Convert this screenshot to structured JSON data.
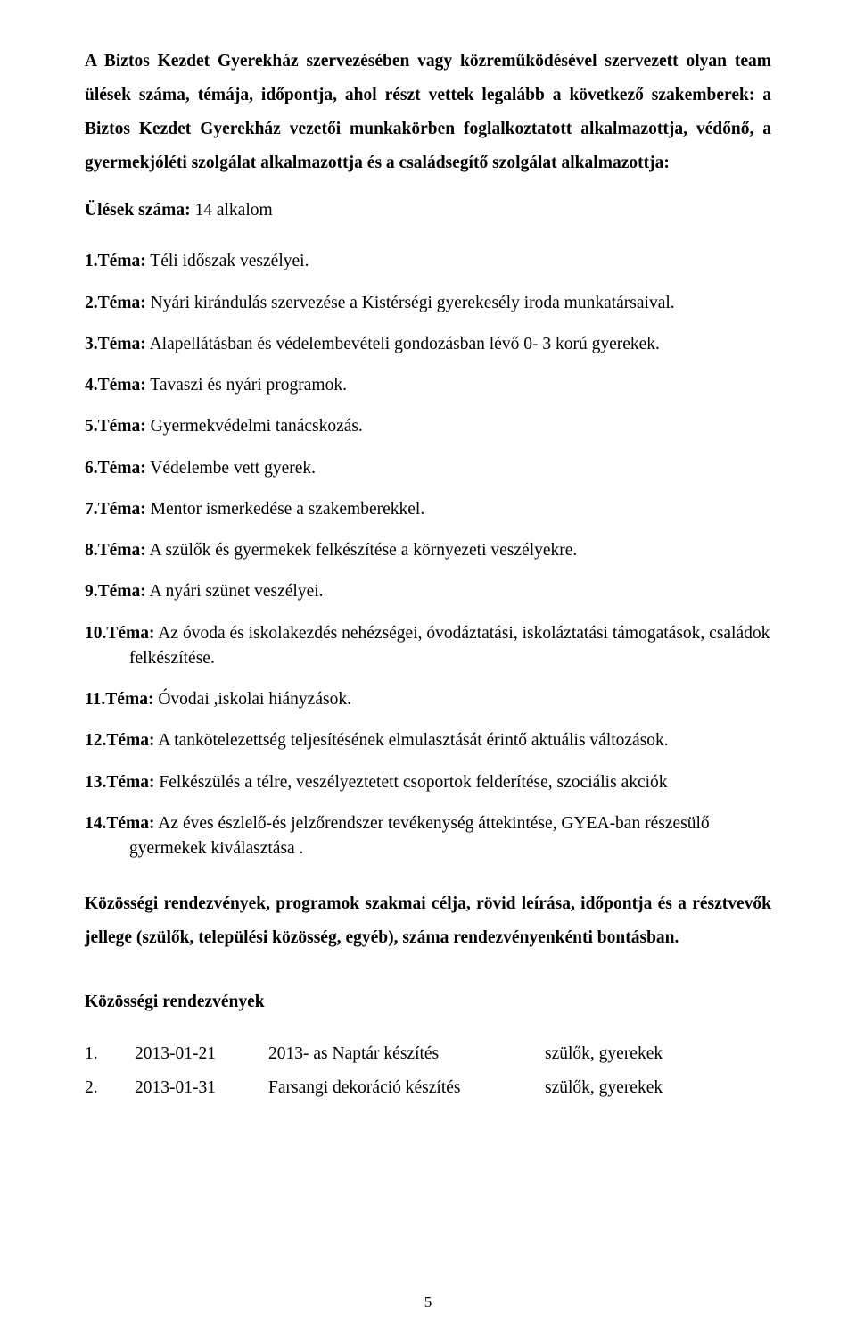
{
  "intro": {
    "para1": "A Biztos Kezdet Gyerekház szervezésében vagy közreműködésével szervezett olyan team ülések száma, témája, időpontja, ahol részt vettek legalább a következő szakemberek: a Biztos Kezdet Gyerekház vezetői munkakörben foglalkoztatott alkalmazottja, védőnő, a gyermekjóléti szolgálat alkalmazottja és a családsegítő szolgálat alkalmazottja:",
    "sessions_label": "Ülések száma:",
    "sessions_value": " 14 alkalom"
  },
  "temas": [
    {
      "n": "1.Téma:",
      "t": " Téli időszak veszélyei."
    },
    {
      "n": "2.Téma:",
      "t": " Nyári kirándulás szervezése a Kistérségi gyerekesély iroda munkatársaival."
    },
    {
      "n": "3.Téma:",
      "t": " Alapellátásban és védelembevételi gondozásban lévő 0- 3 korú gyerekek."
    },
    {
      "n": "4.Téma:",
      "t": " Tavaszi és nyári programok."
    },
    {
      "n": "5.Téma:",
      "t": " Gyermekvédelmi tanácskozás."
    },
    {
      "n": "6.Téma:",
      "t": " Védelembe vett gyerek."
    },
    {
      "n": "7.Téma:",
      "t": " Mentor ismerkedése a szakemberekkel."
    },
    {
      "n": "8.Téma:",
      "t": " A szülők és gyermekek felkészítése a környezeti veszélyekre."
    },
    {
      "n": "9.Téma:",
      "t": " A nyári szünet veszélyei."
    },
    {
      "n": "10.Téma:",
      "t": " Az óvoda és iskolakezdés nehézségei, óvodáztatási, iskoláztatási támogatások, családok felkészítése."
    },
    {
      "n": "11.Téma:",
      "t": " Óvodai ,iskolai hiányzások."
    },
    {
      "n": "12.Téma:",
      "t": " A tankötelezettség teljesítésének elmulasztását érintő aktuális változások."
    },
    {
      "n": "13.Téma:",
      "t": " Felkészülés a télre, veszélyeztetett csoportok felderítése, szociális akciók"
    },
    {
      "n": "14.Téma:",
      "t": " Az éves észlelő-és jelzőrendszer tevékenység áttekintése, GYEA-ban részesülő gyermekek kiválasztása ."
    }
  ],
  "community": {
    "heading": "Közösségi rendezvények, programok szakmai célja, rövid leírása, időpontja és a résztvevők jellege (szülők, települési közösség, egyéb), száma rendezvényenkénti bontásban.",
    "subheading": "Közösségi rendezvények",
    "events": [
      {
        "num": "1.",
        "date": "2013-01-21",
        "desc": "2013- as Naptár készítés",
        "who": "szülők, gyerekek"
      },
      {
        "num": "2.",
        "date": "2013-01-31",
        "desc": "Farsangi dekoráció készítés",
        "who": "szülők, gyerekek"
      }
    ]
  },
  "page_number": "5"
}
